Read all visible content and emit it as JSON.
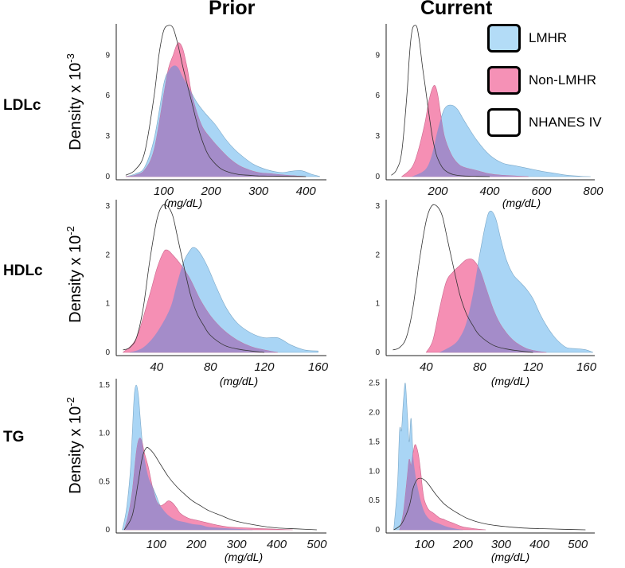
{
  "col_titles": {
    "prior": "Prior",
    "current": "Current"
  },
  "row_labels": {
    "ldl": "LDLc",
    "hdl": "HDLc",
    "tg": "TG"
  },
  "y_titles": {
    "ldl": {
      "text": "Density x 10",
      "exp": "-3"
    },
    "hdl": {
      "text": "Density x 10",
      "exp": "-2"
    },
    "tg": {
      "text": "Density x 10",
      "exp": "-2"
    }
  },
  "x_unit": "(mg/dL)",
  "legend": [
    {
      "label": "LMHR",
      "color": "#b3dcf7"
    },
    {
      "label": "Non-LMHR",
      "color": "#f591b6"
    },
    {
      "label": "NHANES IV",
      "color": "#ffffff"
    }
  ],
  "colors": {
    "lmhr": "#a9d5f5",
    "non_lmhr": "#f58fb4",
    "overlap": "#a48cc9",
    "nhanes_line": "#333333"
  },
  "chart_data": [
    {
      "id": "ldl-prior",
      "type": "area",
      "title": "LDLc Prior",
      "xlabel": "(mg/dL)",
      "ylabel": "Density x 10-3",
      "xlim": [
        0,
        440
      ],
      "ylim": [
        0,
        11.2
      ],
      "xticks": [
        100,
        200,
        300,
        400
      ],
      "yticks": [
        0,
        3,
        6,
        9
      ],
      "series": [
        {
          "name": "LMHR",
          "x": [
            20,
            40,
            60,
            80,
            100,
            110,
            120,
            130,
            140,
            150,
            170,
            190,
            210,
            230,
            250,
            270,
            290,
            310,
            330,
            350,
            370,
            390,
            410,
            430
          ],
          "y": [
            0,
            0.2,
            0.7,
            2.8,
            6.8,
            7.8,
            8.2,
            8.1,
            7.4,
            6.8,
            5.5,
            4.6,
            3.8,
            2.8,
            2.0,
            1.4,
            0.9,
            0.6,
            0.4,
            0.3,
            0.4,
            0.45,
            0.2,
            0
          ]
        },
        {
          "name": "Non-LMHR",
          "x": [
            20,
            40,
            60,
            80,
            100,
            110,
            120,
            130,
            140,
            150,
            160,
            180,
            200,
            220,
            240,
            260,
            280,
            300,
            330,
            360,
            400
          ],
          "y": [
            0,
            0.1,
            0.5,
            2.0,
            6.0,
            8.0,
            9.0,
            9.9,
            9.5,
            8.0,
            6.0,
            3.8,
            2.8,
            2.0,
            1.3,
            0.8,
            0.5,
            0.3,
            0.2,
            0.1,
            0
          ]
        },
        {
          "name": "NHANES IV",
          "x": [
            20,
            40,
            60,
            80,
            90,
            100,
            110,
            120,
            130,
            140,
            150,
            160,
            170,
            180,
            190,
            200,
            220,
            240,
            260,
            280,
            300,
            330,
            360,
            400
          ],
          "y": [
            0.1,
            0.5,
            1.8,
            6.0,
            9.0,
            10.8,
            11.2,
            11.0,
            9.8,
            8.2,
            6.8,
            5.4,
            4.0,
            2.8,
            1.9,
            1.3,
            0.6,
            0.3,
            0.15,
            0.1,
            0.05,
            0.03,
            0.02,
            0
          ]
        }
      ]
    },
    {
      "id": "ldl-current",
      "type": "area",
      "title": "LDLc Current",
      "xlabel": "(mg/dL)",
      "ylabel": "Density x 10-3",
      "xlim": [
        0,
        800
      ],
      "ylim": [
        0,
        11.2
      ],
      "xticks": [
        200,
        400,
        600,
        800
      ],
      "yticks": [
        0,
        3,
        6,
        9
      ],
      "series": [
        {
          "name": "LMHR",
          "x": [
            100,
            150,
            175,
            200,
            225,
            250,
            275,
            300,
            350,
            400,
            450,
            500,
            550,
            600,
            650,
            700,
            750,
            790
          ],
          "y": [
            0,
            0.5,
            1.5,
            3.5,
            5.0,
            5.3,
            5.0,
            4.2,
            2.7,
            1.6,
            1.0,
            0.8,
            0.6,
            0.4,
            0.25,
            0.1,
            0.03,
            0
          ]
        },
        {
          "name": "Non-LMHR",
          "x": [
            60,
            100,
            125,
            150,
            165,
            180,
            190,
            200,
            210,
            225,
            250,
            275,
            300,
            350,
            400,
            450,
            500,
            550
          ],
          "y": [
            0,
            0.7,
            2.0,
            4.0,
            5.6,
            6.6,
            6.7,
            6.0,
            4.7,
            3.0,
            1.7,
            1.0,
            0.7,
            0.45,
            0.2,
            0.1,
            0.05,
            0
          ]
        },
        {
          "name": "NHANES IV",
          "x": [
            20,
            40,
            60,
            80,
            90,
            100,
            110,
            120,
            130,
            140,
            150,
            160,
            170,
            180,
            190,
            200,
            220,
            240,
            260,
            300,
            350,
            400
          ],
          "y": [
            0.1,
            0.5,
            1.8,
            6.0,
            9.0,
            10.8,
            11.2,
            11.0,
            9.8,
            8.2,
            6.8,
            5.4,
            4.0,
            2.8,
            1.9,
            1.3,
            0.6,
            0.3,
            0.15,
            0.05,
            0.02,
            0
          ]
        }
      ]
    },
    {
      "id": "hdl-prior",
      "type": "area",
      "title": "HDLc Prior",
      "xlabel": "(mg/dL)",
      "ylabel": "Density x 10-2",
      "xlim": [
        10,
        165
      ],
      "ylim": [
        0,
        3.1
      ],
      "xticks": [
        40,
        80,
        120,
        160
      ],
      "yticks": [
        0,
        1,
        2,
        3
      ],
      "series": [
        {
          "name": "LMHR",
          "x": [
            20,
            30,
            40,
            50,
            55,
            60,
            65,
            68,
            72,
            78,
            85,
            92,
            100,
            110,
            120,
            130,
            140,
            150,
            160
          ],
          "y": [
            0,
            0.1,
            0.4,
            0.9,
            1.4,
            1.85,
            2.1,
            2.15,
            2.05,
            1.75,
            1.3,
            0.9,
            0.6,
            0.4,
            0.3,
            0.3,
            0.15,
            0.05,
            0.03
          ]
        },
        {
          "name": "Non-LMHR",
          "x": [
            15,
            25,
            35,
            40,
            45,
            48,
            52,
            58,
            65,
            72,
            80,
            90,
            100,
            110,
            120,
            130
          ],
          "y": [
            0,
            0.3,
            1.2,
            1.7,
            2.05,
            2.1,
            2.0,
            1.8,
            1.5,
            1.1,
            0.75,
            0.45,
            0.25,
            0.12,
            0.05,
            0
          ]
        },
        {
          "name": "NHANES IV",
          "x": [
            15,
            20,
            25,
            30,
            35,
            40,
            44,
            48,
            52,
            56,
            60,
            65,
            70,
            75,
            80,
            90,
            100,
            110,
            120
          ],
          "y": [
            0.05,
            0.1,
            0.3,
            0.9,
            1.9,
            2.7,
            3.0,
            3.0,
            2.8,
            2.3,
            1.8,
            1.2,
            0.8,
            0.55,
            0.35,
            0.15,
            0.07,
            0.03,
            0
          ]
        }
      ]
    },
    {
      "id": "hdl-current",
      "type": "area",
      "title": "HDLc Current",
      "xlabel": "(mg/dL)",
      "ylabel": "Density x 10-2",
      "xlim": [
        10,
        165
      ],
      "ylim": [
        0,
        3.1
      ],
      "xticks": [
        40,
        80,
        120,
        160
      ],
      "yticks": [
        0,
        1,
        2,
        3
      ],
      "series": [
        {
          "name": "LMHR",
          "x": [
            50,
            60,
            65,
            70,
            75,
            80,
            85,
            88,
            92,
            96,
            100,
            105,
            110,
            115,
            120,
            125,
            130,
            135,
            140,
            145,
            150,
            155,
            160,
            165
          ],
          "y": [
            0,
            0.15,
            0.3,
            0.6,
            1.2,
            2.0,
            2.7,
            2.9,
            2.75,
            2.3,
            1.9,
            1.6,
            1.45,
            1.3,
            1.1,
            0.8,
            0.55,
            0.35,
            0.2,
            0.1,
            0.08,
            0.07,
            0.05,
            0
          ]
        },
        {
          "name": "Non-LMHR",
          "x": [
            40,
            45,
            50,
            55,
            60,
            65,
            70,
            75,
            80,
            85,
            90,
            95,
            100,
            105,
            110,
            115,
            120,
            130
          ],
          "y": [
            0,
            0.25,
            0.9,
            1.45,
            1.65,
            1.78,
            1.9,
            1.9,
            1.7,
            1.3,
            0.9,
            0.6,
            0.4,
            0.25,
            0.15,
            0.08,
            0.04,
            0
          ]
        },
        {
          "name": "NHANES IV",
          "x": [
            15,
            20,
            25,
            30,
            35,
            40,
            44,
            48,
            52,
            56,
            60,
            65,
            70,
            75,
            80,
            90,
            100,
            110,
            120
          ],
          "y": [
            0.05,
            0.1,
            0.3,
            0.9,
            1.9,
            2.7,
            3.0,
            3.0,
            2.8,
            2.3,
            1.8,
            1.2,
            0.8,
            0.55,
            0.35,
            0.15,
            0.07,
            0.03,
            0
          ]
        }
      ]
    },
    {
      "id": "tg-prior",
      "type": "area",
      "title": "TG Prior",
      "xlabel": "(mg/dL)",
      "ylabel": "Density x 10-2",
      "xlim": [
        0,
        520
      ],
      "ylim": [
        0,
        1.55
      ],
      "xticks": [
        100,
        200,
        300,
        400,
        500
      ],
      "yticks": [
        0,
        0.5,
        1.0,
        1.5
      ],
      "ytickLabels": [
        "0",
        "0.5",
        "1.0",
        "1.5"
      ],
      "series": [
        {
          "name": "LMHR",
          "x": [
            15,
            25,
            35,
            40,
            45,
            50,
            55,
            60,
            65,
            70,
            80,
            90,
            100,
            110,
            130,
            150,
            170,
            190,
            210,
            230,
            260,
            300,
            340
          ],
          "y": [
            0,
            0.2,
            0.6,
            1.0,
            1.4,
            1.5,
            1.4,
            1.15,
            0.9,
            0.75,
            0.55,
            0.45,
            0.35,
            0.25,
            0.15,
            0.1,
            0.08,
            0.06,
            0.05,
            0.03,
            0.02,
            0.01,
            0
          ]
        },
        {
          "name": "Non-LMHR",
          "x": [
            20,
            30,
            40,
            50,
            55,
            60,
            65,
            70,
            80,
            90,
            100,
            110,
            120,
            130,
            140,
            150,
            160,
            180,
            200,
            220,
            250,
            280,
            320,
            380,
            440
          ],
          "y": [
            0,
            0.15,
            0.4,
            0.8,
            0.92,
            0.95,
            0.9,
            0.8,
            0.65,
            0.45,
            0.3,
            0.25,
            0.27,
            0.3,
            0.28,
            0.23,
            0.17,
            0.12,
            0.1,
            0.08,
            0.05,
            0.03,
            0.02,
            0.01,
            0
          ]
        },
        {
          "name": "NHANES IV",
          "x": [
            20,
            40,
            55,
            65,
            75,
            85,
            95,
            110,
            130,
            150,
            170,
            190,
            210,
            230,
            260,
            290,
            320,
            360,
            400,
            450,
            500
          ],
          "y": [
            0,
            0.15,
            0.5,
            0.75,
            0.85,
            0.83,
            0.78,
            0.68,
            0.55,
            0.45,
            0.37,
            0.3,
            0.25,
            0.2,
            0.15,
            0.1,
            0.07,
            0.04,
            0.02,
            0.01,
            0
          ]
        }
      ]
    },
    {
      "id": "tg-current",
      "type": "area",
      "title": "TG Current",
      "xlabel": "(mg/dL)",
      "ylabel": "Density x 10-2",
      "xlim": [
        0,
        540
      ],
      "ylim": [
        0,
        2.55
      ],
      "xticks": [
        100,
        200,
        300,
        400,
        500
      ],
      "yticks": [
        0,
        0.5,
        1.0,
        1.5,
        2.0,
        2.5
      ],
      "ytickLabels": [
        "0",
        "0.5",
        "1.0",
        "1.5",
        "2.0",
        "2.5"
      ],
      "series": [
        {
          "name": "LMHR",
          "x": [
            20,
            30,
            35,
            40,
            45,
            50,
            55,
            60,
            65,
            70,
            75,
            80,
            90,
            100,
            110,
            120,
            140,
            160,
            180,
            200
          ],
          "y": [
            0,
            0.8,
            1.7,
            1.7,
            2.2,
            2.5,
            2.0,
            1.5,
            1.9,
            1.3,
            1.0,
            0.8,
            0.5,
            0.3,
            0.2,
            0.15,
            0.1,
            0.05,
            0.02,
            0
          ]
        },
        {
          "name": "Non-LMHR",
          "x": [
            35,
            45,
            55,
            60,
            65,
            70,
            75,
            80,
            85,
            90,
            95,
            100,
            110,
            120,
            130,
            140,
            150,
            160,
            180,
            200,
            230,
            260
          ],
          "y": [
            0,
            0.3,
            0.9,
            1.2,
            1.1,
            1.3,
            1.45,
            1.4,
            1.25,
            1.0,
            0.7,
            0.5,
            0.35,
            0.3,
            0.25,
            0.2,
            0.18,
            0.15,
            0.1,
            0.05,
            0.02,
            0
          ]
        },
        {
          "name": "NHANES IV",
          "x": [
            20,
            40,
            60,
            70,
            80,
            90,
            100,
            110,
            130,
            150,
            170,
            190,
            210,
            230,
            260,
            290,
            320,
            360,
            400,
            460,
            520
          ],
          "y": [
            0,
            0.1,
            0.4,
            0.7,
            0.85,
            0.88,
            0.85,
            0.78,
            0.6,
            0.45,
            0.35,
            0.27,
            0.2,
            0.15,
            0.1,
            0.07,
            0.05,
            0.03,
            0.02,
            0.01,
            0
          ]
        }
      ]
    }
  ]
}
